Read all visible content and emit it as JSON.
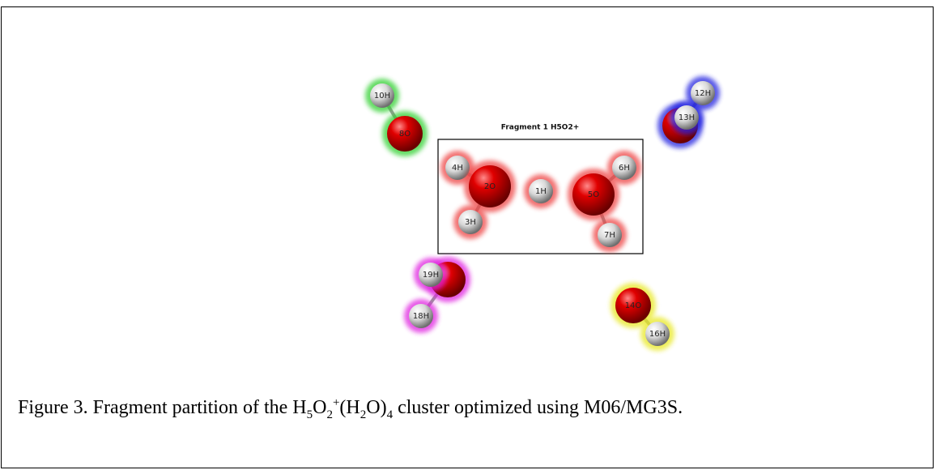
{
  "figure": {
    "fragment_title": "Fragment 1 H5O2+",
    "atoms": [
      "10H",
      "8O",
      "12H",
      "13H",
      "4H",
      "2O",
      "3H",
      "1H",
      "5O",
      "6H",
      "7H",
      "19H",
      "18H",
      "14O",
      "16H"
    ],
    "caption": [
      "Figure 3. Fragment partition of the H",
      "5",
      "O",
      "2",
      "+",
      "(H",
      "2",
      "O)",
      "4",
      " cluster optimized using M06/MG3S."
    ]
  }
}
